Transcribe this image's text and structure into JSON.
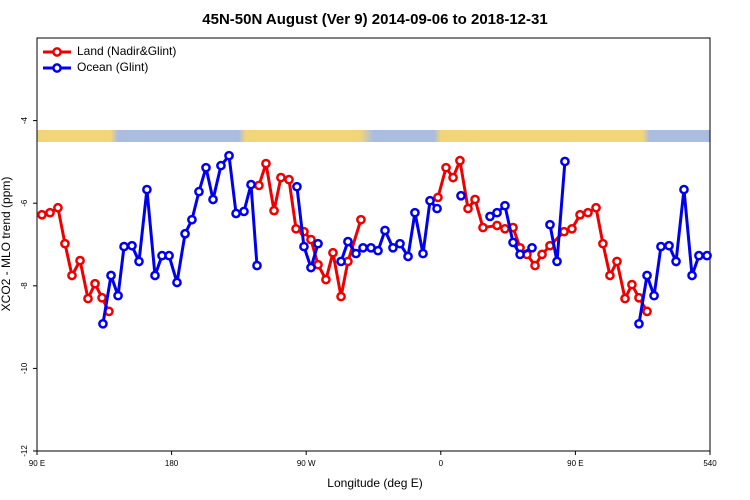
{
  "chart_data": {
    "type": "line",
    "title": "45N-50N August (Ver 9)   2014-09-06 to 2018-12-31",
    "xlabel": "Longitude (deg E)",
    "ylabel": "XCO2 - MLO trend (ppm)",
    "xlim": [
      90,
      540
    ],
    "ylim": [
      -12,
      -2
    ],
    "xticks": [
      {
        "value": 90,
        "label": "90 E"
      },
      180,
      {
        "value": 270,
        "label": "90 W"
      },
      {
        "value": 360,
        "label": "0"
      },
      {
        "value": 450,
        "label": "90 E"
      },
      540
    ],
    "yticks": [
      -12,
      -10,
      -8,
      -6,
      -4
    ],
    "legend": "top-left",
    "series": [
      {
        "name": "Land (Nadir&Glint)",
        "color": "#ee0000",
        "x": [
          93.3,
          98.7,
          104.0,
          108.7,
          113.4,
          118.8,
          124.1,
          128.8,
          133.5,
          138.1,
          null,
          238.4,
          243.1,
          248.5,
          253.1,
          258.5,
          263.2,
          268.5,
          273.2,
          277.9,
          283.2,
          287.9,
          293.3,
          297.9,
          306.6,
          null,
          358.1,
          363.5,
          368.2,
          372.8,
          378.2,
          382.9,
          388.2,
          397.6,
          402.9,
          408.3,
          413.0,
          417.6,
          423.0,
          427.7,
          433.0,
          442.4,
          447.7,
          453.1,
          458.4,
          463.8,
          468.4,
          473.1,
          477.8,
          483.2,
          487.8,
          492.5,
          497.9
        ],
        "values": [
          -6.28,
          -6.23,
          -6.11,
          -6.98,
          -7.75,
          -7.39,
          -8.31,
          -7.95,
          -8.29,
          -8.62,
          null,
          -5.57,
          -5.04,
          -6.18,
          -5.38,
          -5.43,
          -6.62,
          -6.69,
          -6.88,
          -7.49,
          -7.85,
          -7.2,
          -8.26,
          -7.41,
          -6.4,
          null,
          -5.86,
          -5.14,
          -5.38,
          -4.97,
          -6.13,
          -5.91,
          -6.59,
          -6.54,
          -6.62,
          -6.59,
          -7.08,
          -7.24,
          -7.51,
          -7.24,
          -7.03,
          -6.69,
          -6.62,
          -6.28,
          -6.23,
          -6.11,
          -6.98,
          -7.75,
          -7.41,
          -8.31,
          -7.97,
          -8.29,
          -8.62
        ]
      },
      {
        "name": "Ocean (Glint)",
        "color": "#0000ee",
        "x": [
          134.1,
          139.5,
          144.2,
          148.2,
          153.5,
          158.2,
          163.5,
          168.9,
          173.6,
          178.3,
          183.6,
          189.0,
          193.6,
          198.3,
          203.0,
          207.7,
          213.0,
          218.4,
          223.1,
          228.4,
          233.1,
          237.1,
          null,
          263.8,
          268.5,
          273.2,
          277.9,
          null,
          293.3,
          297.9,
          303.3,
          308.0,
          313.3,
          318.0,
          322.7,
          328.0,
          332.7,
          338.1,
          342.7,
          348.1,
          352.8,
          357.5,
          null,
          373.5,
          null,
          392.9,
          397.6,
          402.9,
          408.3,
          413.0,
          421.0,
          null,
          433.0,
          437.7,
          443.0,
          null,
          492.5,
          497.9,
          502.6,
          507.2,
          512.6,
          517.3,
          522.6,
          528.0,
          532.6,
          538.0
        ],
        "values": [
          -8.92,
          -7.75,
          -8.24,
          -7.05,
          -7.03,
          -7.41,
          -5.67,
          -7.75,
          -7.27,
          -7.27,
          -7.92,
          -6.74,
          -6.4,
          -5.72,
          -5.14,
          -5.91,
          -5.09,
          -4.85,
          -6.25,
          -6.2,
          -5.55,
          -7.51,
          null,
          -5.6,
          -7.05,
          -7.56,
          -6.98,
          null,
          -7.41,
          -6.93,
          -7.22,
          -7.08,
          -7.08,
          -7.15,
          -6.66,
          -7.08,
          -6.98,
          -7.29,
          -6.23,
          -7.22,
          -5.94,
          -6.13,
          null,
          -5.82,
          null,
          -6.32,
          -6.23,
          -6.06,
          -6.95,
          -7.24,
          -7.08,
          null,
          -6.52,
          -7.41,
          -4.99,
          null,
          -8.92,
          -7.75,
          -8.24,
          -7.05,
          -7.03,
          -7.41,
          -5.67,
          -7.75,
          -7.27,
          -7.27
        ]
      }
    ]
  }
}
